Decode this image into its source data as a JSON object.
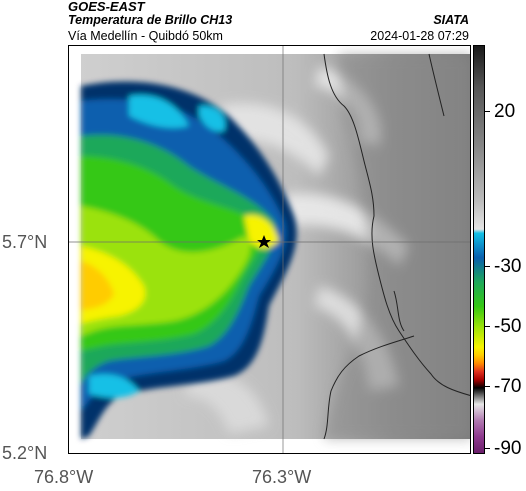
{
  "header": {
    "title": "GOES-EAST",
    "subtitle": "Temperatura de Brillo CH13",
    "brand": "SIATA",
    "location": "Vía Medellín - Quibdó 50km",
    "datetime": "2024-01-28 07:29"
  },
  "map": {
    "lat_labels": [
      "5.7°N",
      "5.2°N"
    ],
    "lon_labels": [
      "76.8°W",
      "76.3°W"
    ],
    "marker": "star-marker",
    "colors": {
      "cloud_cold": "#00336b",
      "cloud_mid": "#22c41e",
      "cloud_warm": "#f7f300",
      "cloud_hot": "#ffcc00",
      "background_gray": "#8c8c8c",
      "light_gray": "#d9d9d9",
      "boundary": "#222222"
    }
  },
  "colorbar": {
    "labels": [
      "20",
      "-30",
      "-50",
      "-70",
      "-90"
    ]
  }
}
